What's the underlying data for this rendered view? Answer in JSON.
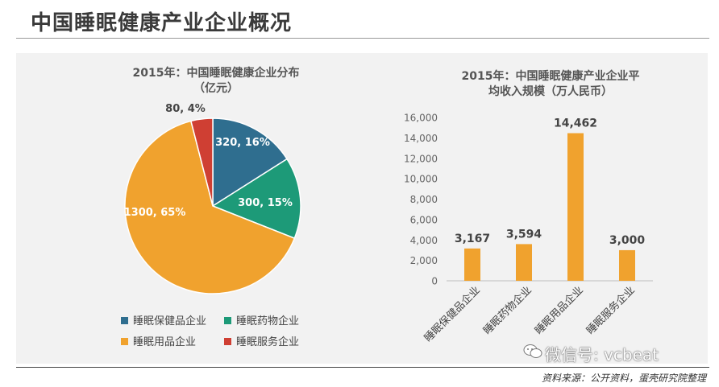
{
  "page": {
    "title": "中国睡眠健康产业企业概况",
    "source": "资料来源：公开资料，蛋壳研究院整理",
    "watermark": "微信号: vcbeat"
  },
  "colors": {
    "blue": "#2f6e8f",
    "green": "#1d9a78",
    "orange": "#f0a22e",
    "red": "#cf3f33"
  },
  "chart_data": [
    {
      "type": "pie",
      "title": "2015年：中国睡眠健康企业分布（亿元）",
      "title_lines": [
        "2015年：中国睡眠健康企业分布",
        "（亿元）"
      ],
      "unit": "亿元",
      "slices": [
        {
          "name": "睡眠保健品企业",
          "value": 320,
          "percent": 16,
          "label": "320, 16%",
          "color": "#2f6e8f"
        },
        {
          "name": "睡眠药物企业",
          "value": 300,
          "percent": 15,
          "label": "300, 15%",
          "color": "#1d9a78"
        },
        {
          "name": "睡眠用品企业",
          "value": 1300,
          "percent": 65,
          "label": "1300, 65%",
          "color": "#f0a22e"
        },
        {
          "name": "睡眠服务企业",
          "value": 80,
          "percent": 4,
          "label": "80, 4%",
          "color": "#cf3f33"
        }
      ],
      "legend": "bottom"
    },
    {
      "type": "bar",
      "title": "2015年：中国睡眠健康产业企业平均收入规模（万人民币）",
      "title_lines": [
        "2015年：中国睡眠健康产业企业平",
        "均收入规模（万人民币）"
      ],
      "categories": [
        "睡眠保健品企业",
        "睡眠药物企业",
        "睡眠用品企业",
        "睡眠服务企业"
      ],
      "values": [
        3167,
        3594,
        14462,
        3000
      ],
      "value_labels": [
        "3,167",
        "3,594",
        "14,462",
        "3,000"
      ],
      "ylim": [
        0,
        16000
      ],
      "yticks": [
        0,
        2000,
        4000,
        6000,
        8000,
        10000,
        12000,
        14000,
        16000
      ],
      "ytick_labels": [
        "0",
        "2,000",
        "4,000",
        "6,000",
        "8,000",
        "10,000",
        "12,000",
        "14,000",
        "16,000"
      ],
      "color": "#f0a22e",
      "grid": false
    }
  ]
}
